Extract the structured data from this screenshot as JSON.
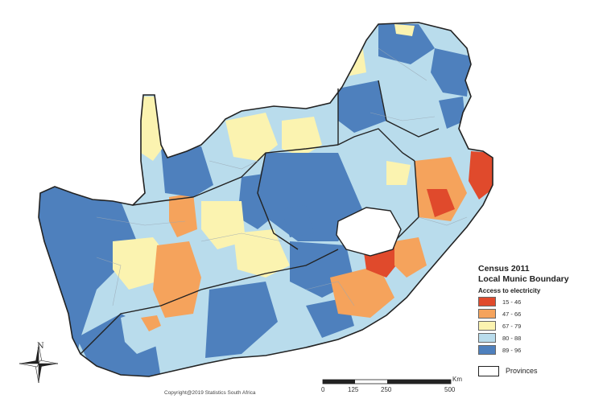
{
  "legend": {
    "title": "Census 2011",
    "subtitle": "Local Munic Boundary",
    "variable": "Access to electricity",
    "classes": [
      {
        "label": "15 - 46",
        "color": "#e04a2c"
      },
      {
        "label": "47 - 66",
        "color": "#f5a35c"
      },
      {
        "label": "67 - 79",
        "color": "#fbf3b0"
      },
      {
        "label": "80 - 88",
        "color": "#b9dcec"
      },
      {
        "label": "89 - 96",
        "color": "#4e80bd"
      }
    ],
    "provinces_label": "Provinces"
  },
  "scale_bar": {
    "ticks": [
      "0",
      "125",
      "250",
      "500"
    ],
    "unit": "Km"
  },
  "north_arrow": {
    "label": "N"
  },
  "copyright": "Copyright@2019 Statistics South Africa",
  "colors": {
    "border": "#222222",
    "district_line": "#9aa7b3",
    "lesotho": "#ffffff"
  }
}
